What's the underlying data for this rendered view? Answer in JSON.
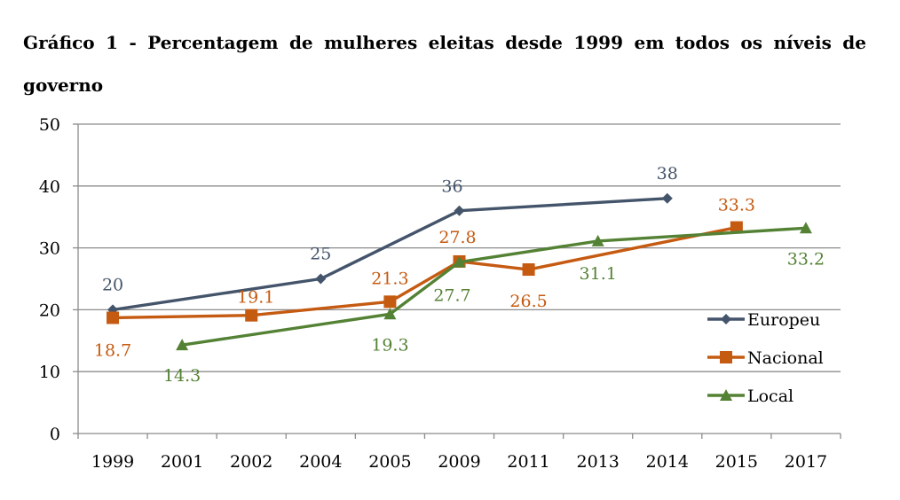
{
  "title": "Gráfico 1 - Percentagem de mulheres eleitas desde 1999 em todos os níveis de governo",
  "chart_data": {
    "type": "line",
    "title": "Gráfico 1 - Percentagem de mulheres eleitas desde 1999 em todos os níveis de governo",
    "categories": [
      "1999",
      "2001",
      "2002",
      "2004",
      "2005",
      "2009",
      "2011",
      "2013",
      "2014",
      "2015",
      "2017"
    ],
    "ylim": [
      0,
      50
    ],
    "yticks": [
      0,
      10,
      20,
      30,
      40,
      50
    ],
    "grid": true,
    "legend_position": "right",
    "series": [
      {
        "name": "Europeu",
        "color": "#44546a",
        "marker": "diamond",
        "values": [
          20,
          null,
          null,
          25,
          null,
          36,
          null,
          null,
          38,
          null,
          null
        ]
      },
      {
        "name": "Nacional",
        "color": "#c55a11",
        "marker": "square",
        "values": [
          18.7,
          null,
          19.1,
          null,
          21.3,
          27.8,
          26.5,
          null,
          null,
          33.3,
          null
        ]
      },
      {
        "name": "Local",
        "color": "#548235",
        "marker": "triangle",
        "values": [
          null,
          14.3,
          null,
          null,
          19.3,
          27.7,
          null,
          31.1,
          null,
          null,
          33.2
        ]
      }
    ]
  }
}
